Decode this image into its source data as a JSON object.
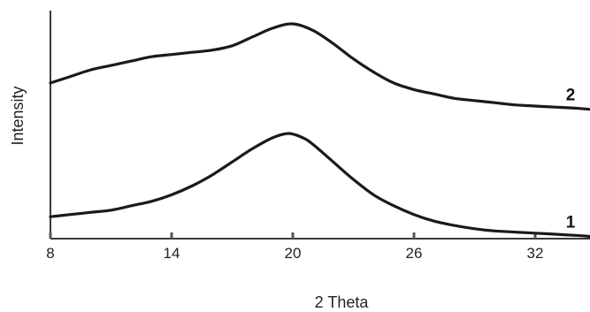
{
  "chart_data": {
    "type": "line",
    "xlabel": "2 Theta",
    "ylabel": "Intensity",
    "xlim": [
      8,
      35
    ],
    "ylim": [
      0,
      10
    ],
    "xticks": [
      8,
      14,
      20,
      26,
      32
    ],
    "grid": false,
    "legend": "none",
    "series": [
      {
        "name": "1",
        "x": [
          8,
          9,
          10,
          11,
          12,
          13,
          14,
          15,
          16,
          17,
          18,
          19,
          19.8,
          20.5,
          21,
          22,
          23,
          24,
          25,
          26,
          27,
          28,
          29,
          30,
          31,
          32,
          33,
          34,
          35
        ],
        "y": [
          1.0,
          1.1,
          1.2,
          1.3,
          1.5,
          1.7,
          2.0,
          2.4,
          2.9,
          3.5,
          4.1,
          4.6,
          4.8,
          4.6,
          4.3,
          3.5,
          2.7,
          2.0,
          1.5,
          1.1,
          0.8,
          0.6,
          0.45,
          0.35,
          0.3,
          0.25,
          0.2,
          0.15,
          0.1
        ]
      },
      {
        "name": "2",
        "x": [
          8,
          9,
          10,
          11,
          12,
          13,
          14,
          15,
          16,
          17,
          18,
          19,
          20,
          21,
          22,
          23,
          24,
          25,
          26,
          27,
          28,
          29,
          30,
          31,
          32,
          33,
          34,
          35
        ],
        "y": [
          7.1,
          7.4,
          7.7,
          7.9,
          8.1,
          8.3,
          8.4,
          8.5,
          8.6,
          8.8,
          9.2,
          9.6,
          9.8,
          9.5,
          8.9,
          8.2,
          7.6,
          7.1,
          6.8,
          6.6,
          6.4,
          6.3,
          6.2,
          6.1,
          6.05,
          6.0,
          5.95,
          5.9
        ]
      }
    ]
  }
}
